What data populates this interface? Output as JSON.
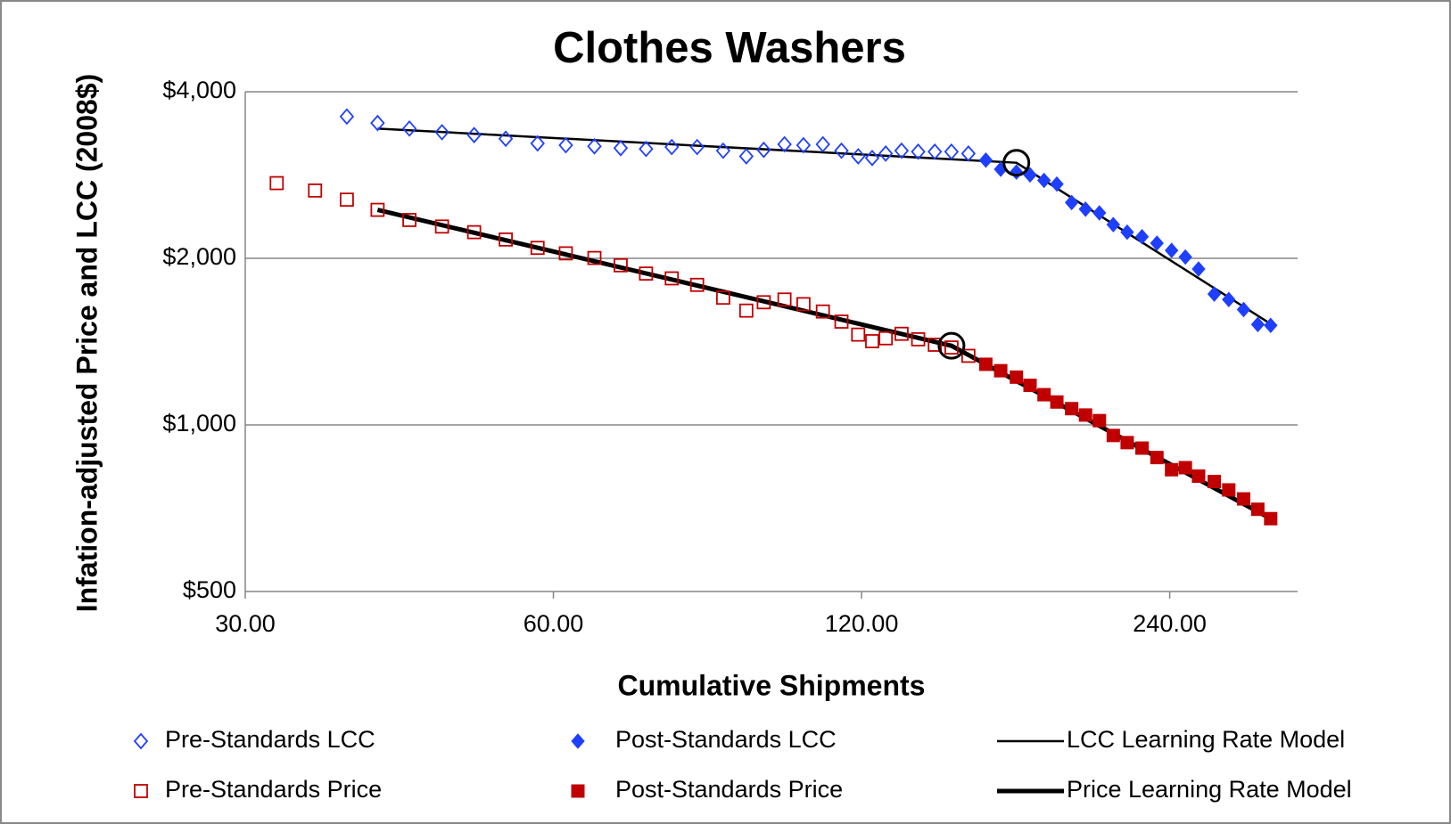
{
  "chart_data": {
    "type": "scatter",
    "title": "Clothes Washers",
    "x_label": "Cumulative Shipments",
    "y_label": "Infation-adjusted Price and LCC (2008$)",
    "xscale": "log",
    "yscale": "log",
    "xlim": [
      30,
      320
    ],
    "ylim": [
      500,
      4000
    ],
    "xticks": [
      {
        "value": 30,
        "label": "30.00"
      },
      {
        "value": 60,
        "label": "60.00"
      },
      {
        "value": 120,
        "label": "120.00"
      },
      {
        "value": 240,
        "label": "240.00"
      }
    ],
    "yticks": [
      {
        "value": 500,
        "label": "$500"
      },
      {
        "value": 1000,
        "label": "$1,000"
      },
      {
        "value": 2000,
        "label": "$2,000"
      },
      {
        "value": 4000,
        "label": "$4,000"
      }
    ],
    "grid": true,
    "legend": "bottom",
    "series": [
      {
        "name": "Pre-Standards LCC",
        "color": "#1f3fff",
        "marker": "diamond-open",
        "x": [
          37.7,
          40.4,
          43.4,
          46.7,
          50.2,
          53.9,
          57.9,
          61.7,
          65.8,
          69.8,
          73.9,
          78.3,
          82.9,
          87.9,
          92.6,
          96.3,
          100.9,
          105.3,
          110.0,
          114.7,
          119.1,
          122.9,
          126.7,
          131.3,
          136.3,
          141.5,
          146.9,
          152.6
        ],
        "values": [
          3608,
          3512,
          3432,
          3380,
          3340,
          3290,
          3226,
          3202,
          3188,
          3164,
          3153,
          3178,
          3178,
          3130,
          3058,
          3141,
          3215,
          3202,
          3215,
          3130,
          3058,
          3036,
          3093,
          3130,
          3117,
          3117,
          3117,
          3093
        ]
      },
      {
        "name": "Post-Standards LCC",
        "color": "#1f3fff",
        "marker": "diamond",
        "x": [
          158.7,
          164.1,
          170.0,
          175.3,
          180.9,
          186.2,
          192.5,
          198.6,
          204.9,
          211.4,
          218.1,
          225.5,
          233.2,
          241.0,
          248.6,
          256.1,
          265.3,
          274.1,
          283.4,
          292.6,
          301.2
        ],
        "values": [
          3010,
          2897,
          2864,
          2830,
          2766,
          2724,
          2523,
          2454,
          2416,
          2301,
          2230,
          2188,
          2130,
          2067,
          2011,
          1913,
          1724,
          1685,
          1616,
          1519,
          1513
        ]
      },
      {
        "name": "LCC Learning Rate Model",
        "color": "#000000",
        "marker": "line",
        "line_width": 2.5,
        "circled_point": 1,
        "x": [
          40.4,
          170.0,
          298.8
        ],
        "values": [
          3432,
          2977,
          1537
        ]
      },
      {
        "name": "Pre-Standards Price",
        "color": "#c00000",
        "marker": "square-open",
        "x": [
          32.2,
          35.1,
          37.7,
          40.4,
          43.4,
          46.7,
          50.2,
          53.9,
          57.9,
          61.7,
          65.8,
          69.8,
          73.9,
          78.3,
          82.9,
          87.9,
          92.6,
          96.3,
          100.9,
          105.3,
          110.0,
          114.7,
          119.1,
          122.9,
          126.7,
          131.3,
          136.3,
          141.5,
          146.9,
          152.6
        ],
        "values": [
          2735,
          2652,
          2553,
          2447,
          2346,
          2283,
          2230,
          2163,
          2089,
          2042,
          2003,
          1943,
          1877,
          1840,
          1791,
          1698,
          1609,
          1666,
          1685,
          1653,
          1603,
          1537,
          1456,
          1417,
          1434,
          1461,
          1428,
          1396,
          1380,
          1333
        ]
      },
      {
        "name": "Post-Standards Price",
        "color": "#c00000",
        "marker": "square",
        "x": [
          158.7,
          164.1,
          170.0,
          175.3,
          180.9,
          186.2,
          192.5,
          198.6,
          204.9,
          211.4,
          218.1,
          225.5,
          233.2,
          241.0,
          248.6,
          256.1,
          265.3,
          274.1,
          283.4,
          292.6,
          301.2
        ],
        "values": [
          1287,
          1253,
          1220,
          1179,
          1134,
          1100,
          1070,
          1042,
          1018,
          957,
          929,
          908,
          873,
          830,
          837,
          808,
          790,
          763,
          735,
          704,
          677
        ]
      },
      {
        "name": "Price Learning Rate Model",
        "color": "#000000",
        "marker": "line",
        "line_width": 5,
        "circled_point": 1,
        "x": [
          40.4,
          146.9,
          301.2
        ],
        "values": [
          2447,
          1390,
          677
        ]
      }
    ]
  }
}
